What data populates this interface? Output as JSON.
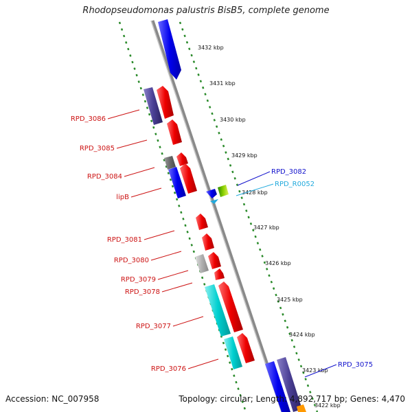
{
  "title": "Rhodopseudomonas palustris BisB5, complete genome",
  "footer": {
    "accession": "Accession: NC_007958",
    "summary": "Topology: circular; Length: 4,892,717 bp; Genes: 4,470"
  },
  "colors": {
    "backbone": "#8a8a8a",
    "ring_dots": "#2a8a2a",
    "label_red": "#cc1111",
    "label_blue": "#1111cc",
    "label_cyan": "#22aadd"
  },
  "kbp_ticks": [
    "3432 kbp",
    "3431 kbp",
    "3430 kbp",
    "3429 kbp",
    "3428 kbp",
    "3427 kbp",
    "3426 kbp",
    "3425 kbp",
    "3424 kbp",
    "3423 kbp",
    "3422 kbp"
  ],
  "gene_labels": [
    {
      "text": "RPD_3086",
      "color": "red"
    },
    {
      "text": "RPD_3085",
      "color": "red"
    },
    {
      "text": "RPD_3084",
      "color": "red"
    },
    {
      "text": "lipB",
      "color": "red"
    },
    {
      "text": "RPD_3081",
      "color": "red"
    },
    {
      "text": "RPD_3080",
      "color": "red"
    },
    {
      "text": "RPD_3079",
      "color": "red"
    },
    {
      "text": "RPD_3078",
      "color": "red"
    },
    {
      "text": "RPD_3077",
      "color": "red"
    },
    {
      "text": "RPD_3076",
      "color": "red"
    },
    {
      "text": "RPD_3082",
      "color": "blue"
    },
    {
      "text": "RPD_R0052",
      "color": "cyan"
    },
    {
      "text": "RPD_3075",
      "color": "blue"
    }
  ]
}
